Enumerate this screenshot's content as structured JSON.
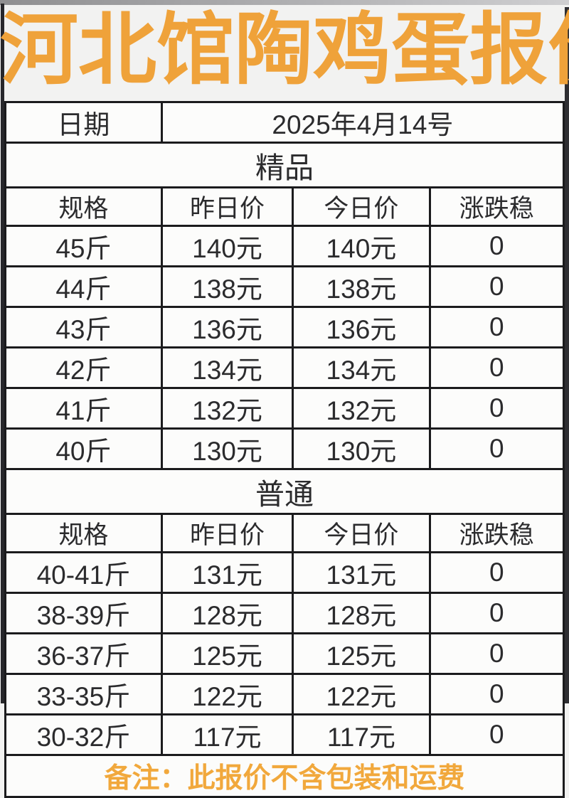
{
  "page": {
    "title": "河北馆陶鸡蛋报价",
    "remark": "备注：此报价不含包装和运费"
  },
  "colors": {
    "title_orange": "#EFA23A",
    "remark_orange": "#F1A83C",
    "border_black": "#1B1B1D",
    "cell_background": "#FCFCFB"
  },
  "table": {
    "date_label": "日期",
    "date_value": "2025年4月14号",
    "columns": [
      "规格",
      "昨日价",
      "今日价",
      "涨跌稳"
    ],
    "sections": [
      {
        "name": "精品",
        "rows": [
          {
            "spec": "45斤",
            "yesterday": "140元",
            "today": "140元",
            "change": "0"
          },
          {
            "spec": "44斤",
            "yesterday": "138元",
            "today": "138元",
            "change": "0"
          },
          {
            "spec": "43斤",
            "yesterday": "136元",
            "today": "136元",
            "change": "0"
          },
          {
            "spec": "42斤",
            "yesterday": "134元",
            "today": "134元",
            "change": "0"
          },
          {
            "spec": "41斤",
            "yesterday": "132元",
            "today": "132元",
            "change": "0"
          },
          {
            "spec": "40斤",
            "yesterday": "130元",
            "today": "130元",
            "change": "0"
          }
        ]
      },
      {
        "name": "普通",
        "rows": [
          {
            "spec": "40-41斤",
            "yesterday": "131元",
            "today": "131元",
            "change": "0"
          },
          {
            "spec": "38-39斤",
            "yesterday": "128元",
            "today": "128元",
            "change": "0"
          },
          {
            "spec": "36-37斤",
            "yesterday": "125元",
            "today": "125元",
            "change": "0"
          },
          {
            "spec": "33-35斤",
            "yesterday": "122元",
            "today": "122元",
            "change": "0"
          },
          {
            "spec": "30-32斤",
            "yesterday": "117元",
            "today": "117元",
            "change": "0"
          }
        ]
      }
    ]
  }
}
